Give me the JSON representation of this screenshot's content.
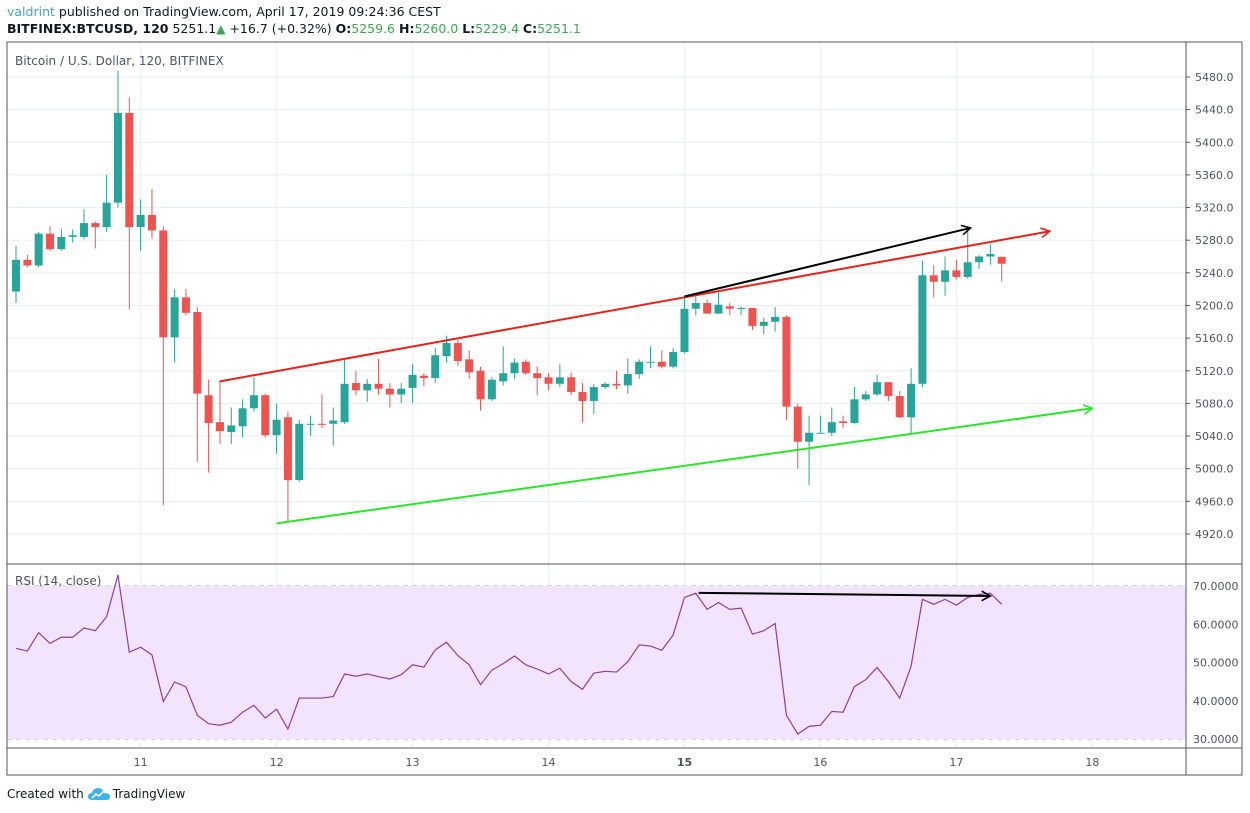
{
  "header": {
    "author": "valdrint",
    "published": "published on TradingView.com, April 17, 2019 09:24:36 CEST",
    "symbol": "BITFINEX:BTCUSD, 120",
    "last": "5251.1",
    "change": "+16.7 (+0.32%)",
    "o_label": "O:",
    "o": "5259.6",
    "h_label": "H:",
    "h": "5260.0",
    "l_label": "L:",
    "l": "5229.4",
    "c_label": "C:",
    "c": "5251.1",
    "up_icon": "triangle-up-icon"
  },
  "footer": {
    "created_with": "Created with",
    "brand": "TradingView",
    "logo_icon": "tradingview-cloud-icon"
  },
  "colors": {
    "up": "#26a69a",
    "down": "#ef5350",
    "rsi_line": "#8e3f9a",
    "rsi_band": "#f3e4fd",
    "grid": "#e9eef3",
    "channel_top": "#e3231c",
    "channel_bottom": "#2be52b",
    "arrow": "#000000"
  },
  "chart_data": [
    {
      "type": "candlestick",
      "title": "Bitcoin / U.S. Dollar, 120, BITFINEX",
      "x_ticks": [
        "11",
        "12",
        "13",
        "14",
        "15",
        "16",
        "17",
        "18"
      ],
      "x_tick_times": [
        "04-11 00:00",
        "04-12 00:00",
        "04-13 00:00",
        "04-14 00:00",
        "04-15 00:00",
        "04-16 00:00",
        "04-17 00:00",
        "04-18 00:00"
      ],
      "y_ticks": [
        "5480.0",
        "5440.0",
        "5400.0",
        "5360.0",
        "5320.0",
        "5280.0",
        "5240.0",
        "5200.0",
        "5160.0",
        "5120.0",
        "5080.0",
        "5040.0",
        "5000.0",
        "4960.0",
        "4920.0"
      ],
      "ylim": [
        4920,
        5480
      ],
      "grid": true,
      "candles_columns": [
        "time",
        "open",
        "high",
        "low",
        "close"
      ],
      "candles": [
        [
          "04-10 02:00",
          5217,
          5273,
          5203,
          5256
        ],
        [
          "04-10 04:00",
          5256,
          5262,
          5247,
          5249
        ],
        [
          "04-10 06:00",
          5249,
          5290,
          5247,
          5288
        ],
        [
          "04-10 08:00",
          5288,
          5297,
          5267,
          5269
        ],
        [
          "04-10 10:00",
          5269,
          5294,
          5267,
          5284
        ],
        [
          "04-10 12:00",
          5284,
          5293,
          5277,
          5286
        ],
        [
          "04-10 14:00",
          5284,
          5318,
          5281,
          5301
        ],
        [
          "04-10 16:00",
          5301,
          5303,
          5270,
          5296
        ],
        [
          "04-10 18:00",
          5296,
          5360,
          5290,
          5326
        ],
        [
          "04-10 20:00",
          5326,
          5488,
          5320,
          5436
        ],
        [
          "04-10 22:00",
          5436,
          5455,
          5195,
          5296
        ],
        [
          "04-11 00:00",
          5296,
          5330,
          5267,
          5311
        ],
        [
          "04-11 02:00",
          5311,
          5343,
          5282,
          5292
        ],
        [
          "04-11 04:00",
          5292,
          5297,
          4955,
          5161
        ],
        [
          "04-11 06:00",
          5161,
          5220,
          5130,
          5210
        ],
        [
          "04-11 08:00",
          5210,
          5220,
          5188,
          5191
        ],
        [
          "04-11 10:00",
          5192,
          5198,
          5008,
          5092
        ],
        [
          "04-11 12:00",
          5090,
          5109,
          4995,
          5056
        ],
        [
          "04-11 14:00",
          5057,
          5108,
          5030,
          5046
        ],
        [
          "04-11 16:00",
          5045,
          5075,
          5030,
          5053
        ],
        [
          "04-11 18:00",
          5052,
          5085,
          5038,
          5074
        ],
        [
          "04-11 20:00",
          5074,
          5112,
          5070,
          5090
        ],
        [
          "04-11 22:00",
          5090,
          5092,
          5038,
          5041
        ],
        [
          "04-12 00:00",
          5041,
          5080,
          5018,
          5060
        ],
        [
          "04-12 02:00",
          5063,
          5070,
          4935,
          4986
        ],
        [
          "04-12 04:00",
          4986,
          5060,
          4984,
          5055
        ],
        [
          "04-12 06:00",
          5055,
          5065,
          5040,
          5055
        ],
        [
          "04-12 08:00",
          5055,
          5091,
          5050,
          5054
        ],
        [
          "04-12 10:00",
          5055,
          5075,
          5028,
          5059
        ],
        [
          "04-12 12:00",
          5057,
          5135,
          5055,
          5104
        ],
        [
          "04-12 14:00",
          5105,
          5120,
          5090,
          5096
        ],
        [
          "04-12 16:00",
          5096,
          5110,
          5082,
          5104
        ],
        [
          "04-12 18:00",
          5104,
          5135,
          5090,
          5098
        ],
        [
          "04-12 20:00",
          5098,
          5105,
          5075,
          5091
        ],
        [
          "04-12 22:00",
          5091,
          5105,
          5080,
          5098
        ],
        [
          "04-13 00:00",
          5099,
          5128,
          5080,
          5115
        ],
        [
          "04-13 02:00",
          5114,
          5117,
          5101,
          5111
        ],
        [
          "04-13 04:00",
          5111,
          5148,
          5105,
          5139
        ],
        [
          "04-13 06:00",
          5138,
          5163,
          5130,
          5154
        ],
        [
          "04-13 08:00",
          5154,
          5158,
          5126,
          5132
        ],
        [
          "04-13 10:00",
          5134,
          5145,
          5110,
          5118
        ],
        [
          "04-13 12:00",
          5120,
          5125,
          5071,
          5085
        ],
        [
          "04-13 14:00",
          5085,
          5112,
          5083,
          5109
        ],
        [
          "04-13 16:00",
          5107,
          5150,
          5102,
          5117
        ],
        [
          "04-13 18:00",
          5117,
          5135,
          5110,
          5130
        ],
        [
          "04-13 20:00",
          5131,
          5134,
          5115,
          5117
        ],
        [
          "04-13 22:00",
          5117,
          5125,
          5090,
          5111
        ],
        [
          "04-14 00:00",
          5112,
          5117,
          5096,
          5104
        ],
        [
          "04-14 02:00",
          5104,
          5128,
          5100,
          5112
        ],
        [
          "04-14 04:00",
          5112,
          5118,
          5090,
          5094
        ],
        [
          "04-14 06:00",
          5094,
          5105,
          5057,
          5083
        ],
        [
          "04-14 08:00",
          5083,
          5104,
          5067,
          5100
        ],
        [
          "04-14 10:00",
          5100,
          5106,
          5098,
          5104
        ],
        [
          "04-14 12:00",
          5104,
          5120,
          5097,
          5102
        ],
        [
          "04-14 14:00",
          5102,
          5135,
          5092,
          5116
        ],
        [
          "04-14 16:00",
          5116,
          5134,
          5110,
          5131
        ],
        [
          "04-14 18:00",
          5131,
          5150,
          5123,
          5131
        ],
        [
          "04-14 20:00",
          5131,
          5145,
          5123,
          5125
        ],
        [
          "04-14 22:00",
          5125,
          5148,
          5123,
          5143
        ],
        [
          "04-15 00:00",
          5143,
          5211,
          5141,
          5196
        ],
        [
          "04-15 02:00",
          5196,
          5211,
          5188,
          5203
        ],
        [
          "04-15 04:00",
          5203,
          5207,
          5190,
          5190
        ],
        [
          "04-15 06:00",
          5190,
          5218,
          5190,
          5201
        ],
        [
          "04-15 08:00",
          5199,
          5203,
          5188,
          5196
        ],
        [
          "04-15 10:00",
          5197,
          5199,
          5188,
          5197
        ],
        [
          "04-15 12:00",
          5197,
          5197,
          5170,
          5175
        ],
        [
          "04-15 14:00",
          5175,
          5185,
          5165,
          5180
        ],
        [
          "04-15 16:00",
          5180,
          5198,
          5168,
          5186
        ],
        [
          "04-15 18:00",
          5186,
          5188,
          5060,
          5076
        ],
        [
          "04-15 20:00",
          5076,
          5080,
          5000,
          5033
        ],
        [
          "04-15 22:00",
          5033,
          5065,
          4980,
          5044
        ],
        [
          "04-16 00:00",
          5044,
          5065,
          5043,
          5044
        ],
        [
          "04-16 02:00",
          5044,
          5075,
          5040,
          5057
        ],
        [
          "04-16 04:00",
          5058,
          5065,
          5050,
          5056
        ],
        [
          "04-16 06:00",
          5056,
          5100,
          5055,
          5085
        ],
        [
          "04-16 08:00",
          5085,
          5095,
          5083,
          5091
        ],
        [
          "04-16 10:00",
          5091,
          5115,
          5089,
          5106
        ],
        [
          "04-16 12:00",
          5106,
          5106,
          5083,
          5089
        ],
        [
          "04-16 14:00",
          5089,
          5095,
          5062,
          5063
        ],
        [
          "04-16 16:00",
          5063,
          5123,
          5042,
          5104
        ],
        [
          "04-16 18:00",
          5104,
          5255,
          5100,
          5237
        ],
        [
          "04-16 20:00",
          5237,
          5249,
          5210,
          5229
        ],
        [
          "04-16 22:00",
          5229,
          5260,
          5212,
          5243
        ],
        [
          "04-17 00:00",
          5243,
          5256,
          5232,
          5235
        ],
        [
          "04-17 02:00",
          5235,
          5295,
          5233,
          5253
        ],
        [
          "04-17 04:00",
          5253,
          5262,
          5245,
          5260
        ],
        [
          "04-17 06:00",
          5260,
          5275,
          5250,
          5263
        ],
        [
          "04-17 08:00",
          5259.6,
          5260.0,
          5229.4,
          5251.1
        ]
      ],
      "drawings": [
        {
          "kind": "arrow",
          "color": "#e3231c",
          "from": [
            "04-11 14:00",
            5107
          ],
          "to": [
            "04-17 16:30",
            5291
          ]
        },
        {
          "kind": "arrow",
          "color": "#2be52b",
          "from": [
            "04-12 00:00",
            4933
          ],
          "to": [
            "04-18 00:00",
            5074
          ]
        },
        {
          "kind": "arrow",
          "color": "#000000",
          "from": [
            "04-15 00:00",
            5211
          ],
          "to": [
            "04-17 02:30",
            5295
          ]
        }
      ]
    },
    {
      "type": "line",
      "title": "RSI (14, close)",
      "y_ticks": [
        "70.0000",
        "60.0000",
        "50.0000",
        "40.0000",
        "30.0000"
      ],
      "ylim": [
        30,
        70
      ],
      "band": [
        30,
        70
      ],
      "values": [
        53.7,
        53,
        57.8,
        55,
        56.6,
        56.6,
        59,
        58.3,
        62,
        72.9,
        52.7,
        54,
        52,
        39.8,
        44.9,
        43.6,
        36.2,
        34,
        33.6,
        34.4,
        37,
        38.8,
        35.5,
        37.8,
        32.6,
        40.7,
        40.7,
        40.7,
        41.1,
        47,
        46.4,
        47,
        46.3,
        45.7,
        46.8,
        49.4,
        48.8,
        53.3,
        55.3,
        51.8,
        49.4,
        44.2,
        48,
        49.7,
        51.7,
        49.4,
        48.3,
        47,
        48.5,
        45,
        43,
        47.2,
        47.7,
        47.5,
        50.2,
        54.6,
        54.3,
        53.2,
        57.2,
        67,
        68.1,
        63.9,
        65.7,
        63.9,
        64.2,
        57.4,
        58.3,
        60.2,
        36.2,
        31.3,
        33.3,
        33.6,
        37.2,
        37,
        43.7,
        45.5,
        48.7,
        45,
        40.7,
        49,
        66.5,
        65.2,
        66.5,
        65,
        67,
        67.8,
        68.1,
        65.2
      ],
      "drawings": [
        {
          "kind": "arrow",
          "color": "#000000",
          "from": [
            "04-15 02:30",
            68.2
          ],
          "to": [
            "04-17 06:00",
            67.4
          ]
        }
      ]
    }
  ]
}
